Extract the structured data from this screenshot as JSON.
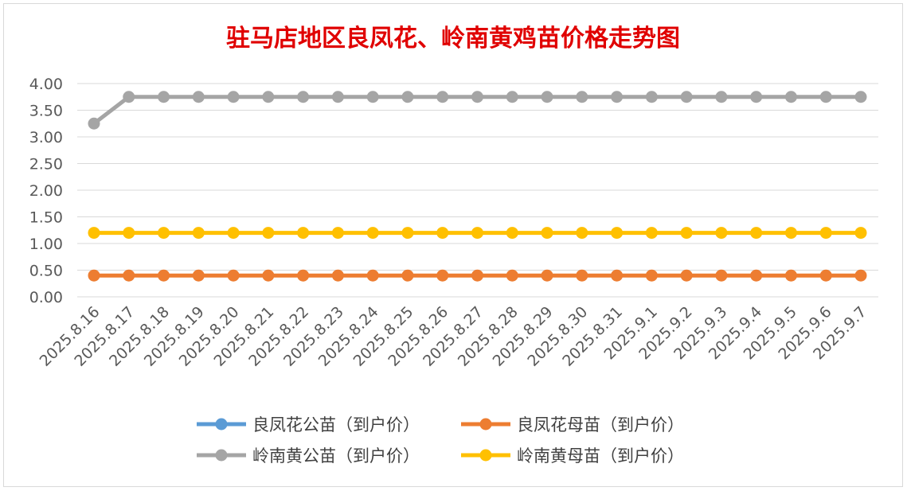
{
  "chart_data": {
    "type": "line",
    "title": "驻马店地区良凤花、岭南黄鸡苗价格走势图",
    "xlabel": "",
    "ylabel": "",
    "ylim": [
      0,
      4
    ],
    "yticks": [
      "0.00",
      "0.50",
      "1.00",
      "1.50",
      "2.00",
      "2.50",
      "3.00",
      "3.50",
      "4.00"
    ],
    "grid": true,
    "legend_position": "bottom",
    "categories": [
      "2025.8.16",
      "2025.8.17",
      "2025.8.18",
      "2025.8.19",
      "2025.8.20",
      "2025.8.21",
      "2025.8.22",
      "2025.8.23",
      "2025.8.24",
      "2025.8.25",
      "2025.8.26",
      "2025.8.27",
      "2025.8.28",
      "2025.8.29",
      "2025.8.30",
      "2025.8.31",
      "2025.9.1",
      "2025.9.2",
      "2025.9.3",
      "2025.9.4",
      "2025.9.5",
      "2025.9.6",
      "2025.9.7"
    ],
    "series": [
      {
        "name": "良凤花公苗（到户价）",
        "color": "#5b9bd5",
        "values": [
          null,
          null,
          null,
          null,
          null,
          null,
          null,
          null,
          null,
          null,
          null,
          null,
          null,
          null,
          null,
          null,
          null,
          null,
          null,
          null,
          null,
          null,
          null
        ]
      },
      {
        "name": "良凤花母苗（到户价）",
        "color": "#ed7d31",
        "values": [
          0.4,
          0.4,
          0.4,
          0.4,
          0.4,
          0.4,
          0.4,
          0.4,
          0.4,
          0.4,
          0.4,
          0.4,
          0.4,
          0.4,
          0.4,
          0.4,
          0.4,
          0.4,
          0.4,
          0.4,
          0.4,
          0.4,
          0.4
        ]
      },
      {
        "name": "岭南黄公苗（到户价）",
        "color": "#a5a5a5",
        "values": [
          3.25,
          3.75,
          3.75,
          3.75,
          3.75,
          3.75,
          3.75,
          3.75,
          3.75,
          3.75,
          3.75,
          3.75,
          3.75,
          3.75,
          3.75,
          3.75,
          3.75,
          3.75,
          3.75,
          3.75,
          3.75,
          3.75,
          3.75
        ]
      },
      {
        "name": "岭南黄母苗（到户价）",
        "color": "#ffc000",
        "values": [
          1.2,
          1.2,
          1.2,
          1.2,
          1.2,
          1.2,
          1.2,
          1.2,
          1.2,
          1.2,
          1.2,
          1.2,
          1.2,
          1.2,
          1.2,
          1.2,
          1.2,
          1.2,
          1.2,
          1.2,
          1.2,
          1.2,
          1.2
        ]
      }
    ],
    "legend_order": [
      0,
      1,
      2,
      3
    ]
  }
}
